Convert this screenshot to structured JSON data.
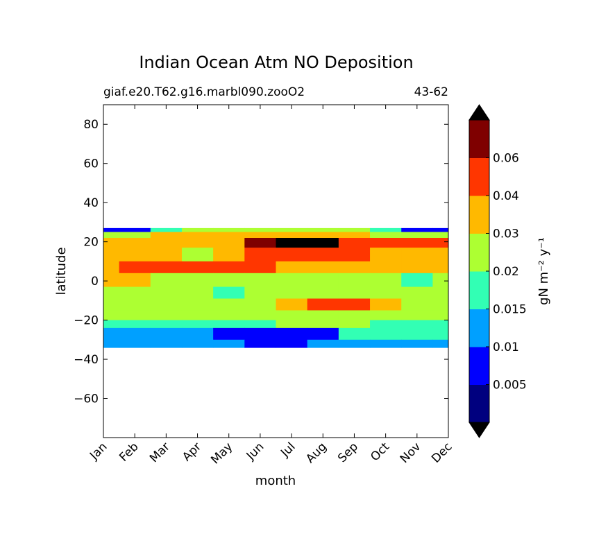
{
  "chart_data": {
    "type": "heatmap",
    "title": "Indian Ocean Atm NO Deposition",
    "subtitle_left": "giaf.e20.T62.g16.marbl090.zooO2",
    "subtitle_right": "43-62",
    "xlabel": "month",
    "ylabel": "latitude",
    "x_ticks": [
      "Jan",
      "Feb",
      "Mar",
      "Apr",
      "May",
      "Jun",
      "Jul",
      "Aug",
      "Sep",
      "Oct",
      "Nov",
      "Dec"
    ],
    "ylim": [
      -80,
      90
    ],
    "y_ticks": [
      80,
      60,
      40,
      20,
      0,
      -20,
      -40,
      -60
    ],
    "y_tick_labels": [
      "80",
      "60",
      "40",
      "20",
      "0",
      "−20",
      "−40",
      "−60"
    ],
    "data_lat_range": [
      -34,
      27
    ],
    "colorbar": {
      "label": "gN m⁻² y⁻¹",
      "levels": [
        0,
        0.005,
        0.01,
        0.015,
        0.02,
        0.03,
        0.04,
        0.06,
        0.07
      ],
      "tick_labels": [
        "0.005",
        "0.01",
        "0.015",
        "0.02",
        "0.03",
        "0.04",
        "0.06"
      ],
      "colors": [
        "#00007f",
        "#0000fe",
        "#00a0ff",
        "#32ffb4",
        "#adff32",
        "#ffb900",
        "#ff3600",
        "#7f0000"
      ],
      "extend_colors": [
        "#000000",
        "#000000"
      ]
    },
    "bands": [
      {
        "lat_top": 27,
        "lat_bottom": 25,
        "values": [
          0.008,
          0.008,
          0.015,
          0.02,
          0.02,
          0.02,
          0.02,
          0.02,
          0.02,
          0.015,
          0.008,
          0.008
        ]
      },
      {
        "lat_top": 25,
        "lat_bottom": 22,
        "values": [
          0.02,
          0.02,
          0.03,
          0.03,
          0.03,
          0.03,
          0.035,
          0.035,
          0.03,
          0.02,
          0.02,
          0.02
        ]
      },
      {
        "lat_top": 22,
        "lat_bottom": 17,
        "values": [
          0.035,
          0.035,
          0.035,
          0.03,
          0.035,
          0.065,
          0.075,
          0.075,
          0.05,
          0.045,
          0.045,
          0.045
        ]
      },
      {
        "lat_top": 17,
        "lat_bottom": 10,
        "values": [
          0.03,
          0.03,
          0.03,
          0.025,
          0.03,
          0.045,
          0.045,
          0.045,
          0.045,
          0.035,
          0.03,
          0.03
        ]
      },
      {
        "lat_top": 10,
        "lat_bottom": 4,
        "values": [
          0.03,
          0.045,
          0.045,
          0.045,
          0.045,
          0.045,
          0.035,
          0.03,
          0.03,
          0.03,
          0.03,
          0.03
        ]
      },
      {
        "lat_top": 4,
        "lat_bottom": -3,
        "values": [
          0.03,
          0.03,
          0.025,
          0.025,
          0.025,
          0.025,
          0.025,
          0.025,
          0.025,
          0.02,
          0.015,
          0.02
        ]
      },
      {
        "lat_top": -3,
        "lat_bottom": -9,
        "values": [
          0.02,
          0.02,
          0.02,
          0.02,
          0.015,
          0.02,
          0.02,
          0.025,
          0.025,
          0.025,
          0.025,
          0.025
        ]
      },
      {
        "lat_top": -9,
        "lat_bottom": -15,
        "values": [
          0.02,
          0.02,
          0.02,
          0.02,
          0.02,
          0.025,
          0.035,
          0.045,
          0.045,
          0.035,
          0.025,
          0.025
        ]
      },
      {
        "lat_top": -15,
        "lat_bottom": -20,
        "values": [
          0.02,
          0.02,
          0.02,
          0.02,
          0.02,
          0.02,
          0.02,
          0.025,
          0.025,
          0.025,
          0.025,
          0.025
        ]
      },
      {
        "lat_top": -20,
        "lat_bottom": -24,
        "values": [
          0.015,
          0.015,
          0.015,
          0.015,
          0.015,
          0.015,
          0.02,
          0.02,
          0.02,
          0.015,
          0.015,
          0.015
        ]
      },
      {
        "lat_top": -24,
        "lat_bottom": -30,
        "values": [
          0.01,
          0.01,
          0.01,
          0.01,
          0.008,
          0.008,
          0.008,
          0.008,
          0.015,
          0.015,
          0.015,
          0.015
        ]
      },
      {
        "lat_top": -30,
        "lat_bottom": -34,
        "values": [
          0.01,
          0.01,
          0.01,
          0.01,
          0.01,
          0.008,
          0.008,
          0.01,
          0.01,
          0.01,
          0.01,
          0.01
        ]
      }
    ],
    "grid": false,
    "legend": "colorbar-right"
  }
}
